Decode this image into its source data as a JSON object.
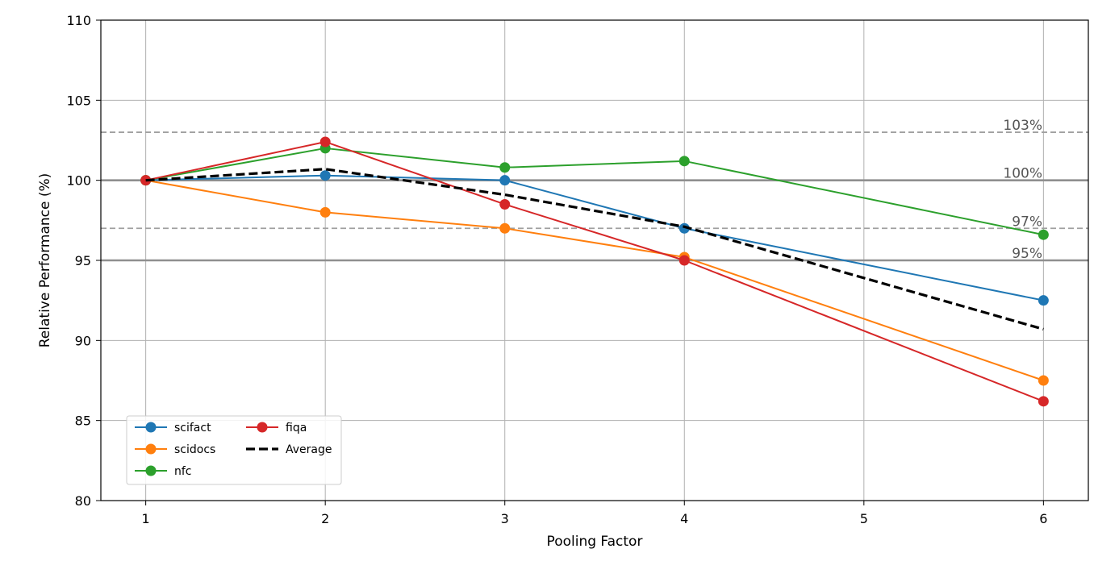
{
  "chart_data": {
    "type": "line",
    "title": "",
    "xlabel": "Pooling Factor",
    "ylabel": "Relative Performance (%)",
    "xlim": [
      0.75,
      6.25
    ],
    "ylim": [
      80,
      110
    ],
    "x_ticks": [
      1,
      2,
      3,
      4,
      5,
      6
    ],
    "y_ticks": [
      80,
      85,
      90,
      95,
      100,
      105,
      110
    ],
    "grid": true,
    "legend_position": "lower-left",
    "reference_lines": [
      {
        "y": 103,
        "label": "103%",
        "style": "dashed",
        "color": "#a0a0a0"
      },
      {
        "y": 100,
        "label": "100%",
        "style": "solid",
        "color": "#8f8f8f"
      },
      {
        "y": 97,
        "label": "97%",
        "style": "dashed",
        "color": "#a0a0a0"
      },
      {
        "y": 95,
        "label": "95%",
        "style": "solid",
        "color": "#8f8f8f"
      }
    ],
    "series": [
      {
        "name": "scifact",
        "color": "#1f77b4",
        "style": "solid",
        "markers": true,
        "x": [
          1,
          2,
          3,
          4,
          6
        ],
        "values": [
          100.0,
          100.3,
          100.0,
          97.0,
          92.5
        ]
      },
      {
        "name": "scidocs",
        "color": "#ff7f0e",
        "style": "solid",
        "markers": true,
        "x": [
          1,
          2,
          3,
          4,
          6
        ],
        "values": [
          100.0,
          98.0,
          97.0,
          95.2,
          87.5
        ]
      },
      {
        "name": "nfc",
        "color": "#2ca02c",
        "style": "solid",
        "markers": true,
        "x": [
          1,
          2,
          3,
          4,
          6
        ],
        "values": [
          100.0,
          102.0,
          100.8,
          101.2,
          96.6
        ]
      },
      {
        "name": "fiqa",
        "color": "#d62728",
        "style": "solid",
        "markers": true,
        "x": [
          1,
          2,
          3,
          4,
          6
        ],
        "values": [
          100.0,
          102.4,
          98.5,
          95.0,
          86.2
        ]
      },
      {
        "name": "Average",
        "color": "#000000",
        "style": "dashed",
        "markers": false,
        "x": [
          1,
          2,
          3,
          4,
          6
        ],
        "values": [
          100.0,
          100.7,
          99.1,
          97.1,
          90.7
        ]
      }
    ]
  }
}
